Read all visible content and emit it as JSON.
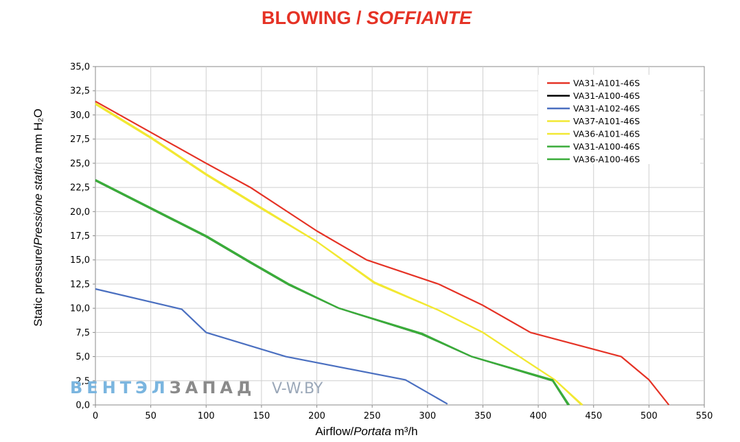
{
  "title": {
    "main": "BLOWING",
    "separator": " / ",
    "sub": "SOFFIANTE",
    "color": "#e53225"
  },
  "watermark": {
    "part1": "ВЕНТЭЛ",
    "part2": "ЗАПАД",
    "site": "V-W.BY"
  },
  "chart_data": {
    "type": "line",
    "xlabel": {
      "main": "Airflow",
      "italic": "Portata",
      "unit": "m³/h"
    },
    "ylabel": {
      "main": "Static pressure",
      "italic": "Pressione statica",
      "unit": "mm H₂O"
    },
    "xlim": [
      0,
      550
    ],
    "ylim": [
      0,
      35
    ],
    "x_ticks": [
      0,
      50,
      100,
      150,
      200,
      250,
      300,
      350,
      400,
      450,
      500,
      550
    ],
    "y_ticks": [
      "0,0",
      "2,5",
      "5,0",
      "7,5",
      "10,0",
      "12,5",
      "15,0",
      "17,5",
      "20,0",
      "22,5",
      "25,0",
      "27,5",
      "30,0",
      "32,5",
      "35,0"
    ],
    "grid": true,
    "legend_position": "top-right",
    "series": [
      {
        "name": "VA31-A101-46S",
        "color": "#e53225",
        "points": [
          [
            0,
            31.4
          ],
          [
            50,
            28.2
          ],
          [
            100,
            25.0
          ],
          [
            140,
            22.5
          ],
          [
            200,
            18.0
          ],
          [
            245,
            15.0
          ],
          [
            310,
            12.5
          ],
          [
            350,
            10.3
          ],
          [
            393,
            7.5
          ],
          [
            475,
            5.0
          ],
          [
            500,
            2.6
          ],
          [
            518,
            0.0
          ]
        ]
      },
      {
        "name": "VA31-A100-46S",
        "color": "#000000",
        "points": [
          [
            0,
            23.2
          ],
          [
            100,
            17.4
          ],
          [
            140,
            14.7
          ],
          [
            175,
            12.4
          ],
          [
            220,
            10.0
          ],
          [
            295,
            7.3
          ],
          [
            340,
            5.0
          ],
          [
            413,
            2.5
          ],
          [
            427,
            0.0
          ]
        ]
      },
      {
        "name": "VA31-A102-46S",
        "color": "#4a6fc0",
        "points": [
          [
            0,
            12.0
          ],
          [
            78,
            9.9
          ],
          [
            100,
            7.5
          ],
          [
            172,
            5.0
          ],
          [
            280,
            2.6
          ],
          [
            318,
            0.1
          ]
        ]
      },
      {
        "name": "VA37-A101-46S",
        "color": "#f2e832",
        "points": [
          [
            0,
            31.1
          ],
          [
            50,
            27.6
          ],
          [
            100,
            23.8
          ],
          [
            150,
            20.3
          ],
          [
            200,
            16.9
          ],
          [
            252,
            12.7
          ],
          [
            310,
            9.8
          ],
          [
            350,
            7.5
          ],
          [
            383,
            5.0
          ],
          [
            415,
            2.6
          ],
          [
            440,
            0.0
          ]
        ]
      },
      {
        "name": "VA36-A101-46S",
        "color": "#f2e832",
        "points": [
          [
            0,
            31.2
          ],
          [
            50,
            27.7
          ],
          [
            100,
            23.9
          ],
          [
            150,
            20.4
          ],
          [
            200,
            16.9
          ],
          [
            252,
            12.6
          ],
          [
            310,
            9.8
          ],
          [
            350,
            7.5
          ],
          [
            383,
            5.0
          ],
          [
            415,
            2.6
          ],
          [
            439,
            0.0
          ]
        ]
      },
      {
        "name": "VA31-A100-46S",
        "color": "#3aac3a",
        "points": [
          [
            0,
            23.2
          ],
          [
            100,
            17.4
          ],
          [
            140,
            14.7
          ],
          [
            175,
            12.4
          ],
          [
            220,
            10.0
          ],
          [
            295,
            7.3
          ],
          [
            340,
            5.0
          ],
          [
            413,
            2.5
          ],
          [
            427,
            0.0
          ]
        ]
      },
      {
        "name": "VA36-A100-46S",
        "color": "#3aac3a",
        "points": [
          [
            0,
            23.3
          ],
          [
            100,
            17.5
          ],
          [
            140,
            14.8
          ],
          [
            175,
            12.5
          ],
          [
            220,
            10.0
          ],
          [
            295,
            7.4
          ],
          [
            340,
            5.0
          ],
          [
            413,
            2.6
          ],
          [
            428,
            0.0
          ]
        ]
      }
    ]
  }
}
